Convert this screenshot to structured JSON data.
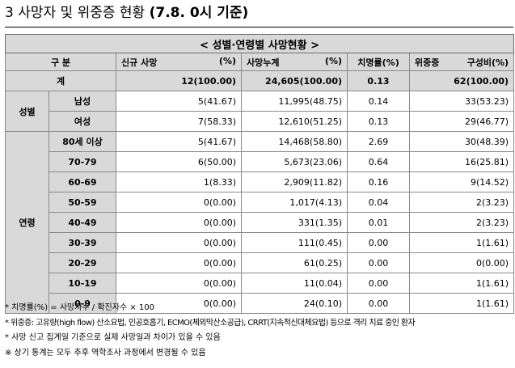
{
  "title": {
    "main": "3 사망자 및 위중증 현황",
    "date": "(7.8. 0시 기준)"
  },
  "table": {
    "caption": "< 성별·연령별 사망현황 >",
    "headers": {
      "category": "구 분",
      "new_deaths": "신규 사망",
      "new_deaths_pct": "(%)",
      "cumulative_deaths": "사망누계",
      "cumulative_pct": "(%)",
      "fatality_rate": "치명률(%)",
      "severe": "위중증",
      "severe_ratio": "구성비(%)"
    },
    "total": {
      "label": "계",
      "new": "12(100.00)",
      "cumulative": "24,605(100.00)",
      "rate": "0.13",
      "severe": "62(100.00)"
    },
    "sex_group_label": "성별",
    "sex_rows": [
      {
        "label": "남성",
        "new": "5(41.67)",
        "cumulative": "11,995(48.75)",
        "rate": "0.14",
        "severe": "33(53.23)"
      },
      {
        "label": "여성",
        "new": "7(58.33)",
        "cumulative": "12,610(51.25)",
        "rate": "0.13",
        "severe": "29(46.77)"
      }
    ],
    "age_group_label": "연령",
    "age_rows": [
      {
        "label": "80세 이상",
        "new": "5(41.67)",
        "cumulative": "14,468(58.80)",
        "rate": "2.69",
        "severe": "30(48.39)"
      },
      {
        "label": "70-79",
        "new": "6(50.00)",
        "cumulative": "5,673(23.06)",
        "rate": "0.64",
        "severe": "16(25.81)"
      },
      {
        "label": "60-69",
        "new": "1(8.33)",
        "cumulative": "2,909(11.82)",
        "rate": "0.16",
        "severe": "9(14.52)"
      },
      {
        "label": "50-59",
        "new": "0(0.00)",
        "cumulative": "1,017(4.13)",
        "rate": "0.04",
        "severe": "2(3.23)"
      },
      {
        "label": "40-49",
        "new": "0(0.00)",
        "cumulative": "331(1.35)",
        "rate": "0.01",
        "severe": "2(3.23)"
      },
      {
        "label": "30-39",
        "new": "0(0.00)",
        "cumulative": "111(0.45)",
        "rate": "0.00",
        "severe": "1(1.61)"
      },
      {
        "label": "20-29",
        "new": "0(0.00)",
        "cumulative": "61(0.25)",
        "rate": "0.00",
        "severe": "0(0.00)"
      },
      {
        "label": "10-19",
        "new": "0(0.00)",
        "cumulative": "11(0.04)",
        "rate": "0.00",
        "severe": "1(1.61)"
      },
      {
        "label": "0-9",
        "new": "0(0.00)",
        "cumulative": "24(0.10)",
        "rate": "0.00",
        "severe": "1(1.61)"
      }
    ]
  },
  "notes": [
    "* 치명률(%) = 사망자수 / 확진자수 × 100",
    "* 위중증: 고유량(high flow) 산소요법, 인공호흡기, ECMO(체외막산소공급), CRRT(지속적신대체요법) 등으로 격리 치료 중인 환자",
    "* 사망 신고 집계일 기준으로 실제 사망일과 차이가 있을 수 있음",
    "※ 상기 통계는 모두 추후 역학조사 과정에서 변경될 수 있음"
  ]
}
